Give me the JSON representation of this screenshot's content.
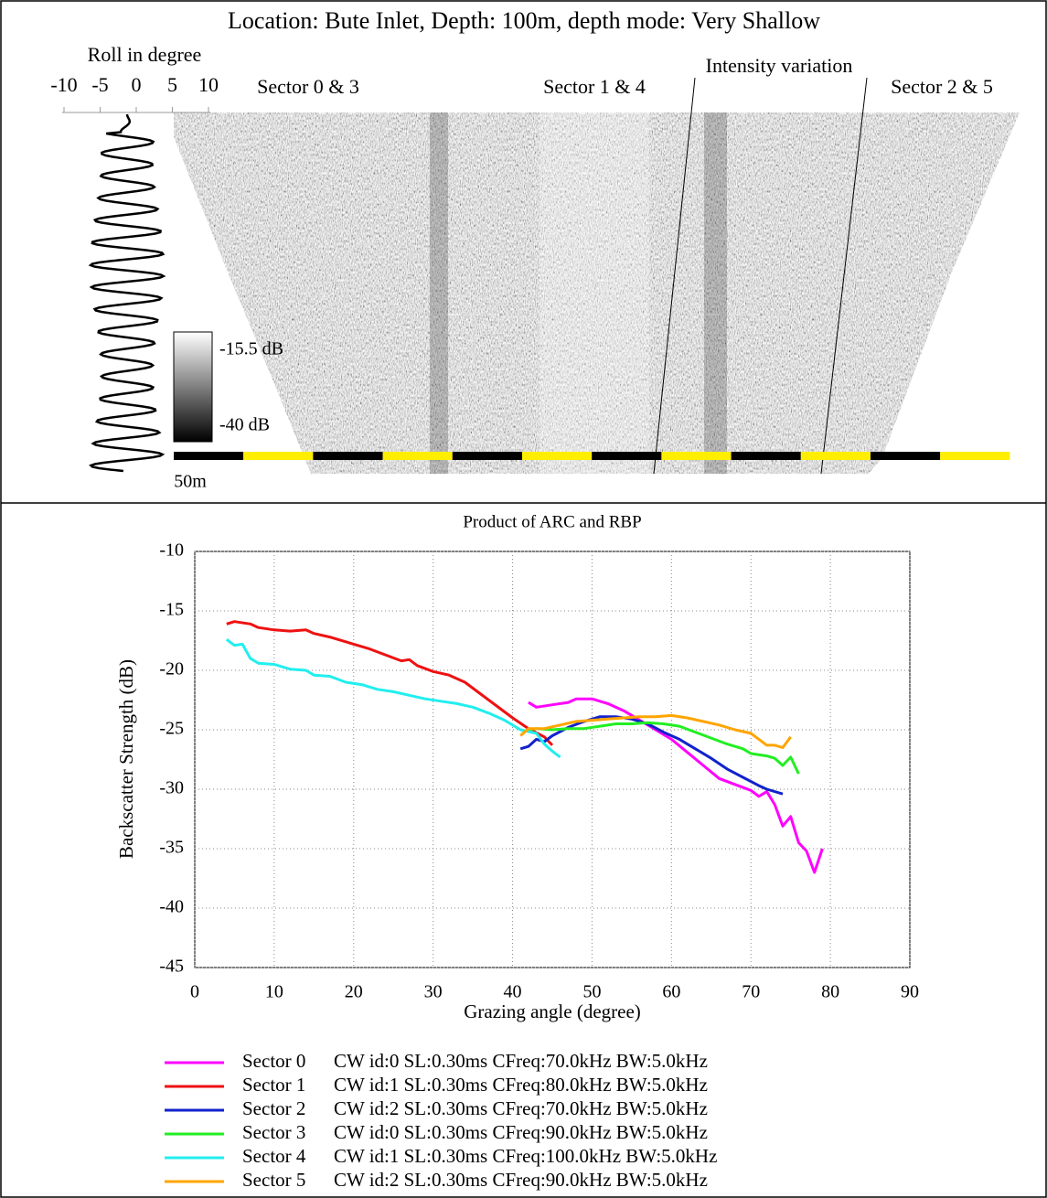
{
  "sonar_panel": {
    "title": "Location: Bute Inlet, Depth: 100m, depth mode: Very Shallow",
    "roll_axis": {
      "label": "Roll in degree",
      "xlim": [
        -10,
        10
      ],
      "xticks": [
        -10,
        -5,
        0,
        5,
        10
      ]
    },
    "sector_labels": [
      "Sector 0 & 3",
      "Sector 1 & 4",
      "Sector 2 & 5"
    ],
    "annotation": "Intensity variation",
    "colorbar_labels": [
      "-15.5 dB",
      "-40 dB"
    ],
    "scale_label": "50m"
  },
  "chart_data": {
    "type": "line",
    "title": "Product of ARC and RBP",
    "x_label": "Grazing angle (degree)",
    "y_label": "Backscatter Strength (dB)",
    "xlim": [
      0,
      90
    ],
    "xticks": [
      0,
      10,
      20,
      30,
      40,
      50,
      60,
      70,
      80,
      90
    ],
    "ylim": [
      -45,
      -10
    ],
    "yticks": [
      -10,
      -15,
      -20,
      -25,
      -30,
      -35,
      -40,
      -45
    ],
    "grid": true,
    "series": [
      {
        "name": "Sector 0",
        "description": "CW id:0 SL:0.30ms CFreq:70.0kHz BW:5.0kHz",
        "color": "#ff00ff",
        "x": [
          42,
          43,
          45,
          47,
          48,
          50,
          52,
          54,
          56,
          58,
          60,
          62,
          64,
          66,
          68,
          70,
          71,
          72,
          73,
          74,
          75,
          76,
          77,
          78,
          79
        ],
        "values": [
          -22.7,
          -23.1,
          -22.9,
          -22.7,
          -22.4,
          -22.4,
          -22.8,
          -23.4,
          -24.2,
          -25,
          -25.8,
          -26.9,
          -28,
          -29.1,
          -29.6,
          -30.1,
          -30.6,
          -30.2,
          -31.3,
          -33.1,
          -32.3,
          -34.5,
          -35.2,
          -37,
          -35
        ]
      },
      {
        "name": "Sector 1",
        "description": "CW id:1 SL:0.30ms CFreq:80.0kHz BW:5.0kHz",
        "color": "#ee1111",
        "x": [
          4,
          5,
          7,
          8,
          10,
          12,
          14,
          15,
          17,
          18,
          20,
          22,
          24,
          26,
          27,
          28,
          30,
          32,
          34,
          36,
          38,
          40,
          42,
          44,
          45
        ],
        "values": [
          -16.1,
          -15.9,
          -16.1,
          -16.4,
          -16.6,
          -16.7,
          -16.6,
          -16.9,
          -17.2,
          -17.4,
          -17.8,
          -18.2,
          -18.7,
          -19.2,
          -19.1,
          -19.6,
          -20.1,
          -20.4,
          -21,
          -22,
          -23,
          -24,
          -24.9,
          -25.6,
          -26.3
        ]
      },
      {
        "name": "Sector 2",
        "description": "CW id:2 SL:0.30ms CFreq:70.0kHz BW:5.0kHz",
        "color": "#1122cc",
        "x": [
          41,
          42,
          43,
          44,
          45,
          47,
          49,
          51,
          53,
          55,
          57,
          59,
          61,
          63,
          65,
          67,
          69,
          71,
          72,
          74
        ],
        "values": [
          -26.6,
          -26.4,
          -25.8,
          -26,
          -25.5,
          -24.8,
          -24.3,
          -23.9,
          -23.9,
          -24.1,
          -24.5,
          -25.2,
          -25.8,
          -26.6,
          -27.4,
          -28.3,
          -29,
          -29.7,
          -30,
          -30.4
        ]
      },
      {
        "name": "Sector 3",
        "description": "CW id:0 SL:0.30ms CFreq:90.0kHz BW:5.0kHz",
        "color": "#22ee22",
        "x": [
          42,
          43,
          45,
          47,
          49,
          51,
          53,
          55,
          57,
          59,
          61,
          63,
          65,
          67,
          69,
          70,
          72,
          73,
          74,
          75,
          76
        ],
        "values": [
          -25,
          -24.9,
          -25,
          -24.9,
          -24.9,
          -24.7,
          -24.5,
          -24.5,
          -24.4,
          -24.5,
          -24.7,
          -25.2,
          -25.7,
          -26.2,
          -26.6,
          -27,
          -27.2,
          -27.4,
          -28,
          -27.3,
          -28.7
        ]
      },
      {
        "name": "Sector 4",
        "description": "CW id:1 SL:0.30ms CFreq:100.0kHz BW:5.0kHz",
        "color": "#22eeee",
        "x": [
          4,
          5,
          6,
          7,
          8,
          10,
          12,
          14,
          15,
          17,
          19,
          21,
          23,
          25,
          27,
          29,
          31,
          33,
          35,
          37,
          39,
          41,
          43,
          44,
          45,
          46
        ],
        "values": [
          -17.4,
          -17.9,
          -17.8,
          -19,
          -19.4,
          -19.5,
          -19.9,
          -20,
          -20.4,
          -20.5,
          -21,
          -21.2,
          -21.6,
          -21.8,
          -22.1,
          -22.4,
          -22.6,
          -22.8,
          -23.1,
          -23.6,
          -24.2,
          -25,
          -25.3,
          -26.2,
          -26.8,
          -27.3
        ]
      },
      {
        "name": "Sector 5",
        "description": "CW id:2 SL:0.30ms CFreq:90.0kHz BW:5.0kHz",
        "color": "#ffa500",
        "x": [
          41,
          42,
          44,
          46,
          48,
          50,
          52,
          54,
          56,
          58,
          60,
          62,
          64,
          66,
          68,
          70,
          72,
          73,
          74,
          75
        ],
        "values": [
          -25.5,
          -24.9,
          -24.9,
          -24.6,
          -24.3,
          -24.2,
          -24.1,
          -24,
          -23.9,
          -23.9,
          -23.8,
          -24,
          -24.3,
          -24.6,
          -25,
          -25.3,
          -26.3,
          -26.3,
          -26.5,
          -25.6
        ]
      }
    ]
  }
}
